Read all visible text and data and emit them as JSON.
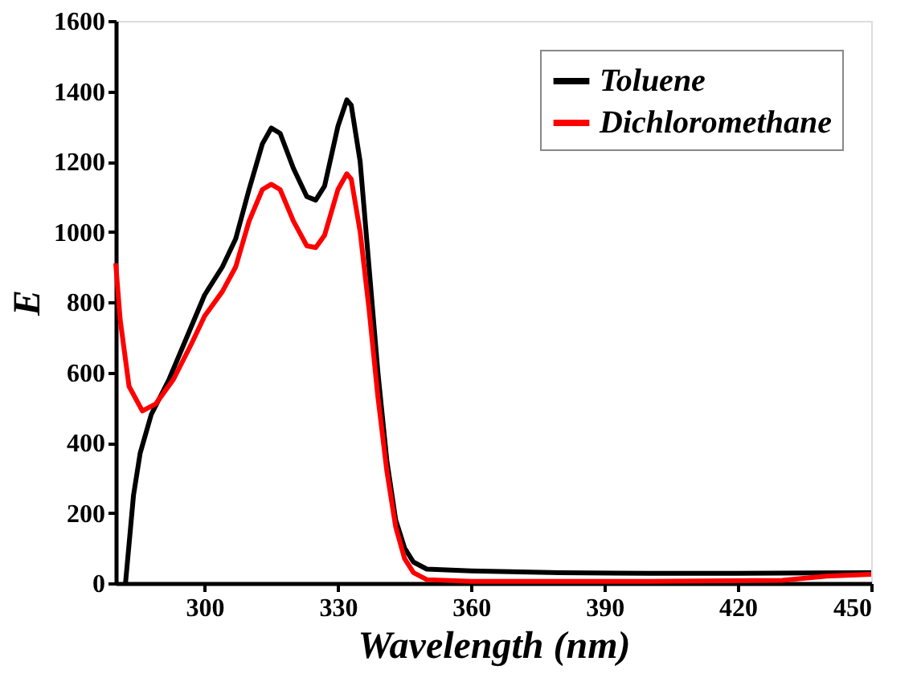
{
  "chart_data": {
    "type": "line",
    "xlabel": "Wavelength (nm)",
    "ylabel": "E",
    "xlim": [
      280,
      450
    ],
    "xticks": [
      300,
      330,
      360,
      390,
      420,
      450
    ],
    "ylim": [
      0,
      1600
    ],
    "yticks": [
      0,
      200,
      400,
      600,
      800,
      1000,
      1200,
      1400,
      1600
    ],
    "grid": false,
    "legend": "top right",
    "marker": "none",
    "line_style": "solid",
    "series": [
      {
        "name": "Toluene",
        "color": "#000000",
        "x": [
          282.2,
          284,
          285.5,
          288,
          292,
          296,
          300,
          304,
          307,
          310,
          313,
          315,
          317,
          320,
          323,
          325,
          327,
          330,
          332,
          333,
          335,
          337,
          339,
          341,
          343,
          345,
          347,
          350,
          360,
          380,
          400,
          420,
          450
        ],
        "values": [
          0,
          250,
          370,
          480,
          580,
          700,
          820,
          900,
          980,
          1120,
          1250,
          1295,
          1280,
          1180,
          1100,
          1090,
          1130,
          1300,
          1375,
          1360,
          1200,
          900,
          600,
          350,
          180,
          100,
          60,
          40,
          35,
          30,
          28,
          28,
          30
        ]
      },
      {
        "name": "Dichloromethane",
        "color": "#ff0000",
        "x": [
          280,
          281,
          283,
          286,
          289,
          293,
          297,
          300,
          304,
          307,
          310,
          313,
          315,
          317,
          320,
          323,
          325,
          327,
          330,
          332,
          333,
          335,
          337,
          339,
          341,
          343,
          345,
          347,
          350,
          360,
          400,
          430,
          440,
          450
        ],
        "values": [
          910,
          750,
          560,
          490,
          510,
          580,
          680,
          760,
          830,
          900,
          1030,
          1120,
          1135,
          1120,
          1030,
          960,
          955,
          990,
          1120,
          1165,
          1150,
          1000,
          780,
          530,
          320,
          160,
          70,
          30,
          10,
          5,
          5,
          8,
          20,
          25
        ]
      }
    ]
  }
}
